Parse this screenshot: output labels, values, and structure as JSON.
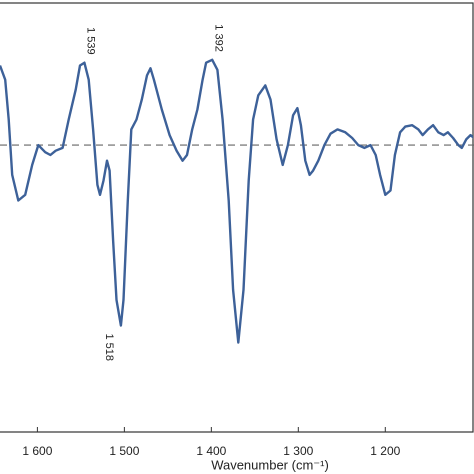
{
  "chart_data": {
    "type": "line",
    "x_label": "Wavenumber (cm⁻¹)",
    "xlim": [
      1643,
      1098
    ],
    "ylim": [
      -2.02,
      1.0
    ],
    "xticks": [
      {
        "value": 1600,
        "label": "1 600"
      },
      {
        "value": 1500,
        "label": "1 500"
      },
      {
        "value": 1400,
        "label": "1 400"
      },
      {
        "value": 1300,
        "label": "1 300"
      },
      {
        "value": 1200,
        "label": "1 200"
      }
    ],
    "baseline": 0,
    "x": [
      1643,
      1637,
      1633,
      1629,
      1622,
      1614,
      1606,
      1599,
      1591,
      1585,
      1579,
      1571,
      1564,
      1556,
      1551,
      1546,
      1541,
      1536,
      1531,
      1528,
      1524,
      1520,
      1517,
      1513,
      1509,
      1504,
      1501,
      1496,
      1492,
      1486,
      1480,
      1474,
      1470,
      1466,
      1457,
      1448,
      1440,
      1433,
      1428,
      1422,
      1416,
      1410,
      1406,
      1399,
      1393,
      1387,
      1380,
      1375,
      1369,
      1363,
      1357,
      1352,
      1346,
      1338,
      1332,
      1325,
      1318,
      1312,
      1306,
      1301,
      1297,
      1292,
      1287,
      1283,
      1277,
      1270,
      1263,
      1255,
      1246,
      1238,
      1231,
      1224,
      1217,
      1211,
      1206,
      1200,
      1194,
      1189,
      1183,
      1177,
      1169,
      1162,
      1157,
      1151,
      1145,
      1139,
      1133,
      1128,
      1122,
      1116,
      1112,
      1107,
      1102,
      1098
    ],
    "series": [
      {
        "color": "#3d6199",
        "values": [
          0.56,
          0.46,
          0.18,
          -0.21,
          -0.39,
          -0.35,
          -0.14,
          0,
          -0.05,
          -0.07,
          -0.04,
          -0.02,
          0.18,
          0.39,
          0.56,
          0.58,
          0.46,
          0.11,
          -0.28,
          -0.35,
          -0.25,
          -0.11,
          -0.18,
          -0.67,
          -1.09,
          -1.27,
          -1.09,
          -0.39,
          0.11,
          0.18,
          0.32,
          0.49,
          0.54,
          0.46,
          0.25,
          0.07,
          -0.04,
          -0.11,
          -0.07,
          0.11,
          0.25,
          0.46,
          0.58,
          0.6,
          0.53,
          0.18,
          -0.39,
          -1.02,
          -1.39,
          -1.02,
          -0.25,
          0.18,
          0.35,
          0.42,
          0.32,
          0.04,
          -0.14,
          0,
          0.21,
          0.26,
          0.14,
          -0.11,
          -0.21,
          -0.18,
          -0.11,
          0,
          0.08,
          0.11,
          0.09,
          0.05,
          0,
          -0.02,
          0,
          -0.07,
          -0.21,
          -0.35,
          -0.32,
          -0.07,
          0.09,
          0.13,
          0.14,
          0.11,
          0.07,
          0.11,
          0.14,
          0.09,
          0.07,
          0.09,
          0.05,
          0,
          -0.02,
          0.04,
          0.07,
          0.05
        ]
      }
    ],
    "annotations": [
      {
        "value": 1539,
        "label": "1 539"
      },
      {
        "value": 1518,
        "label": "1 518"
      },
      {
        "value": 1392,
        "label": "1 392"
      }
    ]
  }
}
